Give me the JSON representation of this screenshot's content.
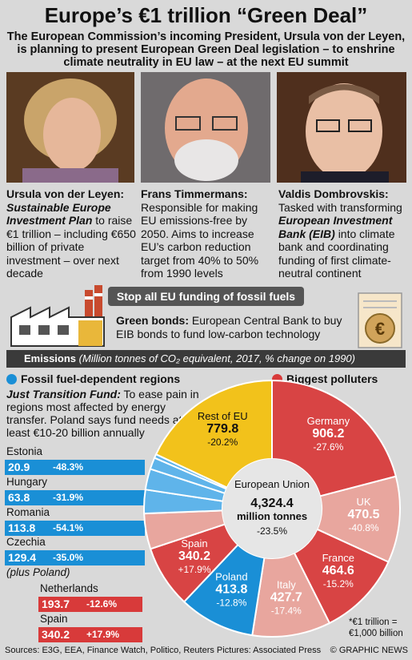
{
  "header": {
    "title": "Europe’s €1 trillion “Green Deal”",
    "subtitle": "The European Commission’s incoming President, Ursula von der Leyen, is planning to present European Green Deal legislation – to enshrine climate neutrality in EU law – at the next EU summit"
  },
  "people": [
    {
      "name": "Ursula von der Leyen:",
      "emph": "Sustainable Europe Investment Plan",
      "text": "to raise €1 trillion – including €650 billion of private investment – over next decade"
    },
    {
      "name": "Frans Timmermans:",
      "text": "Responsible for making EU emissions-free by 2050. Aims to increase EU’s carbon reduction target from 40% to 50% from 1990 levels"
    },
    {
      "name": "Valdis Dombrovskis:",
      "text_pre": "Tasked with transforming",
      "emph": "European Investment Bank (EIB)",
      "text": "into climate bank and coordinating funding of first climate-neutral continent"
    }
  ],
  "banner": "Stop all EU funding of fossil fuels",
  "green_bonds": {
    "label": "Green bonds:",
    "line1": "European Central Bank to buy",
    "line2": "EIB bonds to fund low-carbon technology"
  },
  "emissions": {
    "label": "Emissions",
    "note": "(Million tonnes of CO₂ equivalent, 2017, % change on 1990)"
  },
  "left_section": {
    "heading": "Fossil fuel-dependent regions",
    "jtf_label": "Just Transition Fund:",
    "jtf_text": "To ease pain in regions most affected by energy transfer. Poland says fund needs at least €10-20 billion annually",
    "plus": "(plus Poland)"
  },
  "right_section": {
    "heading": "Biggest polluters"
  },
  "colors": {
    "fossil": "#1a8fd6",
    "polluters": "#d83a3a",
    "rest": "#f2c21b",
    "dark": "#3a3a3a",
    "grey": "#d9d9d9"
  },
  "chart_data": {
    "type": "pie",
    "center": {
      "label": "European Union",
      "value": "4,324.4",
      "unit": "million tonnes",
      "change": "-23.5%"
    },
    "slices": [
      {
        "name": "Germany",
        "value": 906.2,
        "change": "-27.6%",
        "group": "polluters"
      },
      {
        "name": "UK",
        "value": 470.5,
        "change": "-40.8%",
        "group": "polluters"
      },
      {
        "name": "France",
        "value": 464.6,
        "change": "-15.2%",
        "group": "polluters"
      },
      {
        "name": "Italy",
        "value": 427.7,
        "change": "-17.4%",
        "group": "polluters"
      },
      {
        "name": "Poland",
        "value": 413.8,
        "change": "-12.8%",
        "group": "fossil"
      },
      {
        "name": "Spain",
        "value": 340.2,
        "change": "+17.9%",
        "group": "polluters"
      },
      {
        "name": "Netherlands",
        "value": 193.7,
        "change": "-12.6%",
        "group": "polluters"
      },
      {
        "name": "Czechia",
        "value": 129.4,
        "change": "-35.0%",
        "group": "fossil"
      },
      {
        "name": "Romania",
        "value": 113.8,
        "change": "-54.1%",
        "group": "fossil"
      },
      {
        "name": "Hungary",
        "value": 63.8,
        "change": "-31.9%",
        "group": "fossil"
      },
      {
        "name": "Estonia",
        "value": 20.9,
        "change": "-48.3%",
        "group": "fossil"
      },
      {
        "name": "Rest of EU",
        "value": 779.8,
        "change": "-20.2%",
        "group": "rest"
      }
    ]
  },
  "footnote": "*€1 trillion = €1,000 billion",
  "footer": {
    "sources": "Sources: E3G, EEA, Finance Watch, Politico, Reuters   Pictures: Associated Press",
    "credit": "© GRAPHIC NEWS"
  }
}
